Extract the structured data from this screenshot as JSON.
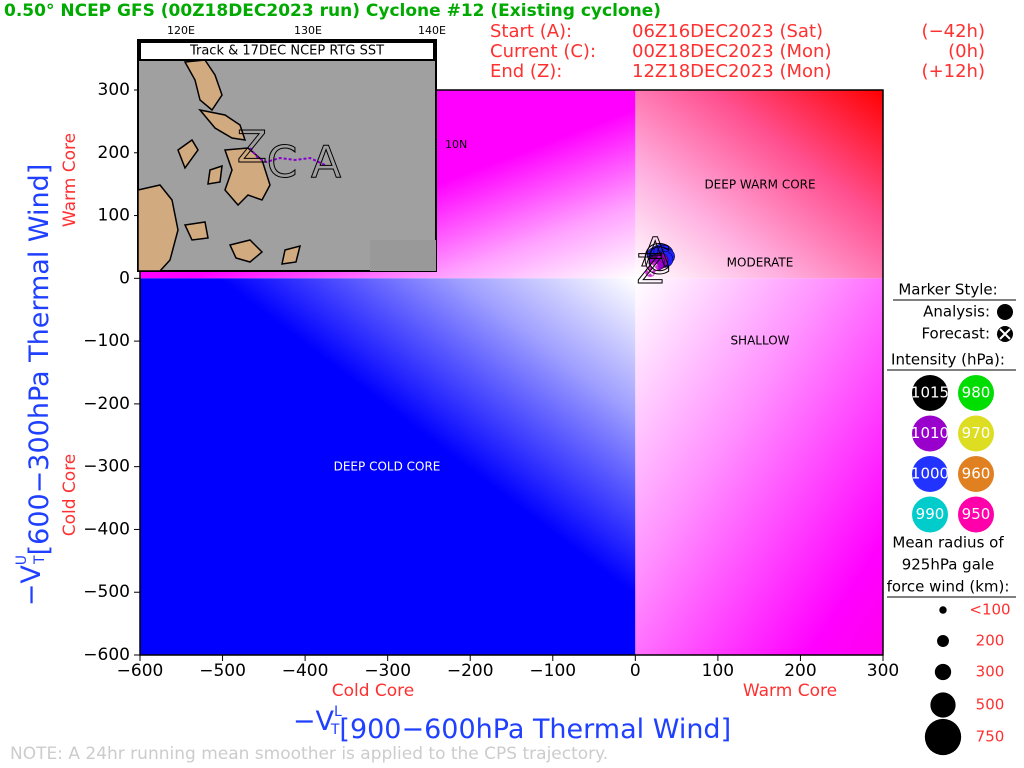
{
  "chart_data": {
    "type": "phase",
    "title": "0.50° NCEP GFS (00Z18DEC2023 run) Cyclone #12 (Existing cyclone)",
    "info": [
      [
        "Start (A):",
        "06Z16DEC2023 (Sat)",
        "(−42h)"
      ],
      [
        "Current (C):",
        "00Z18DEC2023 (Mon)",
        "(0h)"
      ],
      [
        "End (Z):",
        "12Z18DEC2023 (Mon)",
        "(+12h)"
      ]
    ],
    "x_label": {
      "symbol": "−V",
      "sub": "T",
      "sup": "L",
      "text": "[900−600hPa Thermal Wind]"
    },
    "y_label": {
      "symbol": "−V",
      "sub": "T",
      "sup": "U",
      "text": "[600−300hPa Thermal Wind]"
    },
    "x_side_labels": [
      "Cold Core",
      "Warm Core"
    ],
    "y_side_labels": [
      "Warm Core",
      "Cold Core"
    ],
    "regions": [
      "DEEP WARM CORE",
      "MODERATE",
      "SHALLOW",
      "DEEP COLD CORE"
    ],
    "xlim": [
      -600,
      300
    ],
    "xticks": [
      {
        "value": -600,
        "label": "−600"
      },
      {
        "value": -500,
        "label": "−500"
      },
      {
        "value": -400,
        "label": "−400"
      },
      {
        "value": -300,
        "label": "−300"
      },
      {
        "value": -200,
        "label": "−200"
      },
      {
        "value": -100,
        "label": "−100"
      },
      0,
      100,
      200,
      300
    ],
    "ylim": [
      -600,
      300
    ],
    "yticks": [
      {
        "value": -600,
        "label": "−600"
      },
      {
        "value": -500,
        "label": "−500"
      },
      {
        "value": -400,
        "label": "−400"
      },
      {
        "value": -300,
        "label": "−300"
      },
      {
        "value": -200,
        "label": "−200"
      },
      {
        "value": -100,
        "label": "−100"
      },
      0,
      100,
      200,
      300
    ],
    "analysis": {
      "x": [
        24,
        28,
        32,
        36,
        38,
        36,
        30,
        26
      ],
      "y": [
        37,
        40,
        42,
        40,
        35,
        30,
        28,
        25
      ],
      "colors": [
        "#2020ff",
        "#2020ff",
        "#2020ff",
        "#2020ff",
        "#2020ff",
        "#2020ff",
        "#9900cc",
        "#9900cc"
      ]
    },
    "forecast": {
      "x": [
        22,
        18
      ],
      "y": [
        18,
        10
      ],
      "colors": [
        "#cc33cc",
        "#cc33cc"
      ]
    },
    "track_letters": [
      "A",
      "C",
      "Z"
    ],
    "map": {
      "title": "Track & 17DEC NCEP RTG SST",
      "lon_labels": [
        "120E",
        "130E",
        "140E"
      ],
      "lat_labels": [
        "10N"
      ],
      "track_labels": [
        "Z",
        "C",
        "A"
      ]
    },
    "legend": {
      "marker_title": "Marker Style:",
      "analysis": "Analysis:",
      "forecast": "Forecast:",
      "intensity_title": "Intensity (hPa):",
      "intensity": [
        {
          "value": 1015,
          "color": "#000000"
        },
        {
          "value": 980,
          "color": "#00dd00"
        },
        {
          "value": 1010,
          "color": "#9900cc"
        },
        {
          "value": 970,
          "color": "#dddd22"
        },
        {
          "value": 1000,
          "color": "#2233ff"
        },
        {
          "value": 960,
          "color": "#e08020"
        },
        {
          "value": 990,
          "color": "#00cccc"
        },
        {
          "value": 950,
          "color": "#ff00aa"
        }
      ],
      "radius_title": [
        "Mean radius of",
        "925hPa gale",
        "force wind (km):"
      ],
      "radius": [
        {
          "value": 100,
          "label": "<100"
        },
        200,
        300,
        500,
        750
      ]
    },
    "note": "NOTE: A 24hr running mean smoother is applied to the CPS trajectory."
  }
}
